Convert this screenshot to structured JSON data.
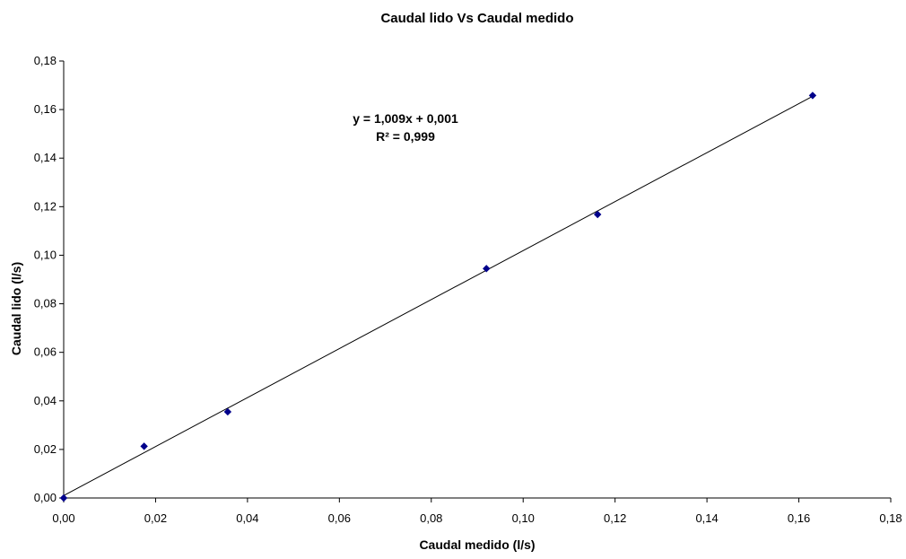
{
  "chart_data": {
    "type": "scatter",
    "title": "Caudal lido Vs Caudal medido",
    "xlabel": "Caudal medido (l/s)",
    "ylabel": "Caudal lido (l/s)",
    "xlim": [
      0,
      0.18
    ],
    "ylim": [
      0,
      0.18
    ],
    "x_ticks": [
      "0,00",
      "0,02",
      "0,04",
      "0,06",
      "0,08",
      "0,10",
      "0,12",
      "0,14",
      "0,16",
      "0,18"
    ],
    "y_ticks": [
      "0,00",
      "0,02",
      "0,04",
      "0,06",
      "0,08",
      "0,10",
      "0,12",
      "0,14",
      "0,16",
      "0,18"
    ],
    "grid": false,
    "legend": "none",
    "series": [
      {
        "color": "#00008B",
        "marker": "diamond",
        "points": [
          {
            "x": 0.0,
            "y": 0.0
          },
          {
            "x": 0.0175,
            "y": 0.0213
          },
          {
            "x": 0.0357,
            "y": 0.0355
          },
          {
            "x": 0.092,
            "y": 0.0945
          },
          {
            "x": 0.1162,
            "y": 0.1168
          },
          {
            "x": 0.163,
            "y": 0.1658
          }
        ]
      }
    ],
    "trendline": {
      "type": "linear",
      "slope": 1.009,
      "intercept": 0.001,
      "x_range": [
        0.0,
        0.163
      ],
      "color": "#000000",
      "equation_label": "y = 1,009x + 0,001",
      "r2_label": "R² = 0,999"
    }
  }
}
